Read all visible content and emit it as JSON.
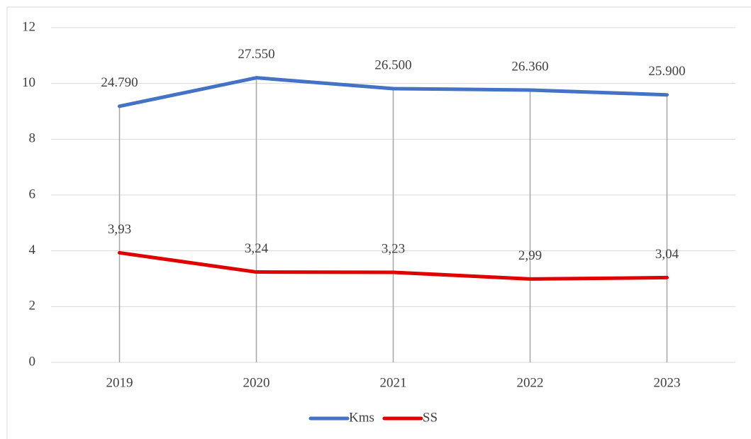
{
  "chart_data": {
    "type": "line",
    "categories": [
      "2019",
      "2020",
      "2021",
      "2022",
      "2023"
    ],
    "series": [
      {
        "name": "Kms",
        "color": "#4472c4",
        "axis": "y2",
        "values": [
          24790,
          27550,
          26500,
          26360,
          25900
        ],
        "value_labels": [
          "24.790",
          "27.550",
          "26.500",
          "26.360",
          "25.900"
        ]
      },
      {
        "name": "SS",
        "color": "#e00000",
        "values": [
          3.93,
          3.24,
          3.23,
          2.99,
          3.04
        ],
        "value_labels": [
          "3,93",
          "3,24",
          "3,23",
          "2,99",
          "3,04"
        ]
      }
    ],
    "ylim": [
      0,
      12
    ],
    "yticks": [
      0,
      2,
      4,
      6,
      8,
      10,
      12
    ],
    "y2lim": [
      0,
      32400
    ],
    "grid": true,
    "drop_lines": true,
    "legend": "bottom"
  }
}
